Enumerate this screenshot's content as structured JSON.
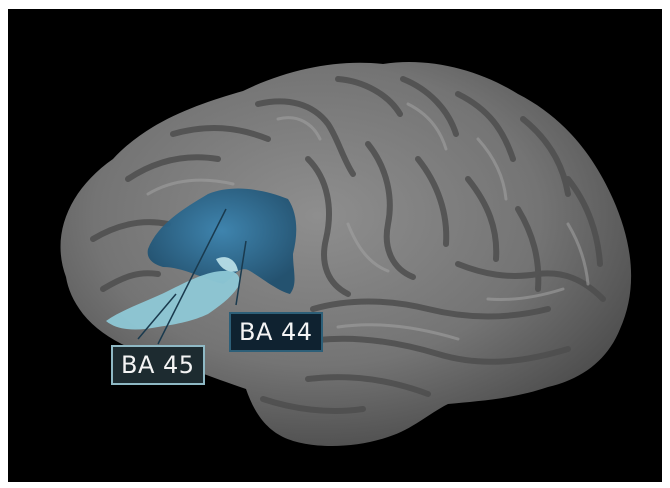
{
  "labels": {
    "ba44": "BA 44",
    "ba45": "BA 45"
  },
  "colors": {
    "background": "#000000",
    "cortex": "#7a7a7a",
    "ba44_region": "#2f6f96",
    "ba45_region": "#8ec8d6"
  }
}
